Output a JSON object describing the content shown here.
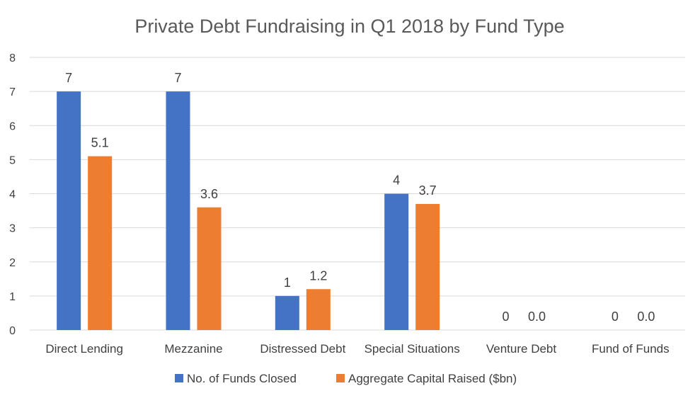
{
  "chart_data": {
    "type": "bar",
    "title": "Private Debt Fundraising in Q1 2018 by Fund Type",
    "categories": [
      "Direct Lending",
      "Mezzanine",
      "Distressed Debt",
      "Special Situations",
      "Venture Debt",
      "Fund of Funds"
    ],
    "series": [
      {
        "name": "No. of Funds Closed",
        "values": [
          7,
          7,
          1,
          4,
          0,
          0
        ],
        "labels": [
          "7",
          "7",
          "1",
          "4",
          "0",
          "0"
        ],
        "color": "#4472C4"
      },
      {
        "name": "Aggregate Capital Raised ($bn)",
        "values": [
          5.1,
          3.6,
          1.2,
          3.7,
          0.0,
          0.0
        ],
        "labels": [
          "5.1",
          "3.6",
          "1.2",
          "3.7",
          "0.0",
          "0.0"
        ],
        "color": "#ED7D31"
      }
    ],
    "yticks": [
      "0",
      "1",
      "2",
      "3",
      "4",
      "5",
      "6",
      "7",
      "8"
    ],
    "ylim": [
      0,
      8
    ],
    "grid": true,
    "legend_position": "bottom",
    "colors": {
      "gridline": "#D9D9D9",
      "text": "#404040",
      "title": "#595959"
    }
  }
}
